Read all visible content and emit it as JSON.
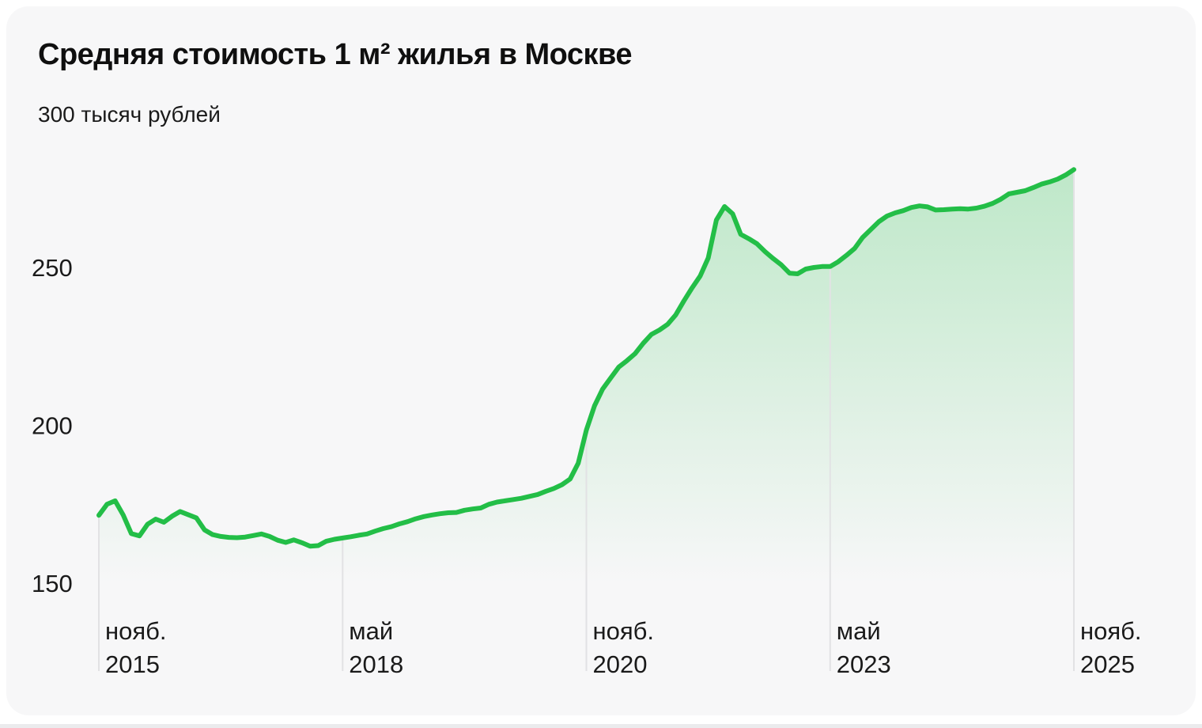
{
  "chart_data": {
    "type": "area",
    "title": "Средняя стоимость 1 м² жилья в Москве",
    "y_top_label": "300 тысяч рублей",
    "ylabel": "тысяч рублей",
    "legend": "none",
    "grid": "vertical-only",
    "y_axis": {
      "ticks": [
        150,
        200,
        250
      ],
      "tick_labels": [
        "150",
        "200",
        "250"
      ],
      "top_label_value": 300,
      "visible_range": [
        122,
        300
      ]
    },
    "x_axis": {
      "start": "нояб. 2015",
      "end": "нояб. 2025",
      "step": "1 month",
      "ticks": [
        {
          "month_index": 0,
          "line1": "нояб.",
          "line2": "2015"
        },
        {
          "month_index": 30,
          "line1": "май",
          "line2": "2018"
        },
        {
          "month_index": 60,
          "line1": "нояб.",
          "line2": "2020"
        },
        {
          "month_index": 90,
          "line1": "май",
          "line2": "2023"
        },
        {
          "month_index": 120,
          "line1": "нояб.",
          "line2": "2025"
        }
      ]
    },
    "series": [
      {
        "unit": "тысяч рублей за 1 м²",
        "start_month": "нояб. 2015",
        "values": [
          171.5,
          175.0,
          176.1,
          171.6,
          165.7,
          165.0,
          168.7,
          170.3,
          169.3,
          171.2,
          172.7,
          171.7,
          170.7,
          166.9,
          165.4,
          164.8,
          164.5,
          164.4,
          164.6,
          165.1,
          165.6,
          164.8,
          163.6,
          162.9,
          163.7,
          162.8,
          161.7,
          161.9,
          163.3,
          163.9,
          164.3,
          164.7,
          165.2,
          165.6,
          166.5,
          167.3,
          167.9,
          168.8,
          169.5,
          170.4,
          171.1,
          171.6,
          172.0,
          172.3,
          172.4,
          173.1,
          173.5,
          173.8,
          175.0,
          175.7,
          176.1,
          176.5,
          176.9,
          177.5,
          178.1,
          179.1,
          180.0,
          181.2,
          183.0,
          188.0,
          198.5,
          206.2,
          211.5,
          215.0,
          218.5,
          220.5,
          222.7,
          226.0,
          228.8,
          230.2,
          232.0,
          235.0,
          239.4,
          243.5,
          247.3,
          253.0,
          265.0,
          269.3,
          267.0,
          260.5,
          259.1,
          257.5,
          255.0,
          252.8,
          250.8,
          248.2,
          248.0,
          249.5,
          250.0,
          250.3,
          250.3,
          251.8,
          253.8,
          256.0,
          259.5,
          262.0,
          264.5,
          266.3,
          267.3,
          268.0,
          269.0,
          269.5,
          269.2,
          268.2,
          268.3,
          268.5,
          268.6,
          268.5,
          268.8,
          269.4,
          270.3,
          271.6,
          273.3,
          273.8,
          274.3,
          275.3,
          276.4,
          277.1,
          278.0,
          279.3,
          281.0
        ]
      }
    ],
    "colors": {
      "line": "#23be47",
      "area_fill": "#23be47",
      "area_top_opacity": 0.27,
      "area_bottom_opacity": 0,
      "gridline": "#e2e2e4",
      "text": "#1a1a1a",
      "title_text": "#0f0f0f",
      "card_background": "#f7f7f8",
      "page_background": "#ffffff"
    }
  }
}
